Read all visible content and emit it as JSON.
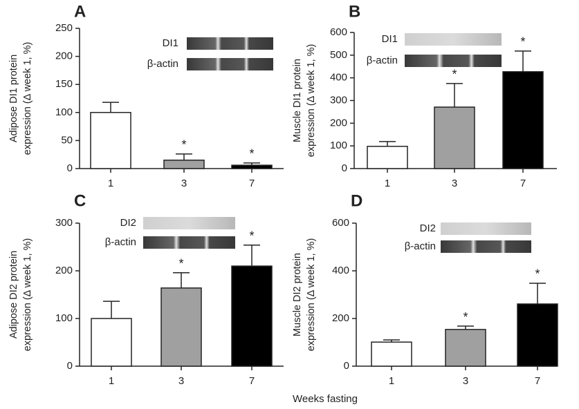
{
  "xlabel": "Weeks fasting",
  "chart_data": [
    {
      "type": "bar",
      "panel": "A",
      "ylabel": [
        "Adipose DI1 protein",
        "expression (Δ week 1, %)"
      ],
      "categories": [
        "1",
        "3",
        "7"
      ],
      "values": [
        100,
        15,
        6
      ],
      "errors": [
        18,
        11,
        4
      ],
      "colors": [
        "#ffffff",
        "#a0a0a0",
        "#000000"
      ],
      "significance": [
        null,
        "*",
        "*"
      ],
      "ylim": [
        0,
        250
      ],
      "yticks": [
        0,
        50,
        100,
        150,
        200,
        250
      ],
      "blot_labels": [
        "DI1",
        "β-actin"
      ]
    },
    {
      "type": "bar",
      "panel": "B",
      "ylabel": [
        "Muscle DI1 protein",
        "expression (Δ week 1, %)"
      ],
      "categories": [
        "1",
        "3",
        "7"
      ],
      "values": [
        98,
        271,
        427
      ],
      "errors": [
        21,
        104,
        91
      ],
      "colors": [
        "#ffffff",
        "#a0a0a0",
        "#000000"
      ],
      "significance": [
        null,
        "*",
        "*"
      ],
      "ylim": [
        0,
        600
      ],
      "yticks": [
        0,
        100,
        200,
        300,
        400,
        500,
        600
      ],
      "blot_labels": [
        "DI1",
        "β-actin"
      ]
    },
    {
      "type": "bar",
      "panel": "C",
      "ylabel": [
        "Adipose DI2 protein",
        "expression (Δ week 1, %)"
      ],
      "categories": [
        "1",
        "3",
        "7"
      ],
      "values": [
        100,
        164,
        210
      ],
      "errors": [
        36,
        32,
        44
      ],
      "colors": [
        "#ffffff",
        "#a0a0a0",
        "#000000"
      ],
      "significance": [
        null,
        "*",
        "*"
      ],
      "ylim": [
        0,
        300
      ],
      "yticks": [
        0,
        100,
        200,
        300
      ],
      "blot_labels": [
        "DI2",
        "β-actin"
      ]
    },
    {
      "type": "bar",
      "panel": "D",
      "ylabel": [
        "Muscle DI2 protein",
        "expression (Δ week 1, %)"
      ],
      "categories": [
        "1",
        "3",
        "7"
      ],
      "values": [
        101,
        154,
        261
      ],
      "errors": [
        9,
        14,
        87
      ],
      "colors": [
        "#ffffff",
        "#a0a0a0",
        "#000000"
      ],
      "significance": [
        null,
        "*",
        "*"
      ],
      "ylim": [
        0,
        600
      ],
      "yticks": [
        0,
        200,
        400,
        600
      ],
      "blot_labels": [
        "DI2",
        "β-actin"
      ]
    }
  ]
}
